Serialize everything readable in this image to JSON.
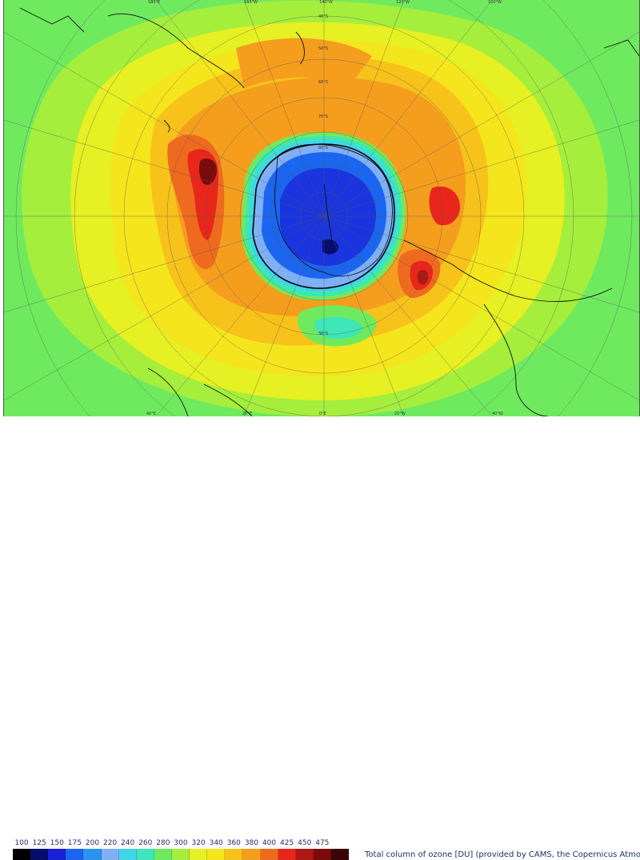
{
  "caption": "Total column of ozone [DU] (provided by CAMS, the Copernicus Atmosphere Monitorin",
  "scale": {
    "labels": [
      "100",
      "125",
      "150",
      "175",
      "200",
      "220",
      "240",
      "260",
      "280",
      "300",
      "320",
      "340",
      "360",
      "380",
      "400",
      "425",
      "450",
      "475"
    ],
    "colors": [
      "#000000",
      "#050f6b",
      "#1b1fd9",
      "#1a66f0",
      "#2a93ef",
      "#7fb0f5",
      "#3fd6e8",
      "#3ee6b8",
      "#6fea5f",
      "#a5ee3c",
      "#e6f022",
      "#f5e51c",
      "#f7c21a",
      "#f59e1e",
      "#ee6a1f",
      "#e8261c",
      "#ad1714",
      "#7b0b0b",
      "#3a0505"
    ]
  },
  "map": {
    "projection": "South polar stereographic",
    "ozone_hole_contour_du": 220,
    "latitude_labels": [
      "30°S",
      "40°S",
      "50°S",
      "60°S",
      "70°S",
      "80°S"
    ],
    "longitude_labels": [
      "180°E",
      "120°E",
      "100°E",
      "80°E",
      "60°E",
      "40°E",
      "20°E",
      "0°E",
      "20°W",
      "40°W",
      "60°W",
      "80°W",
      "100°W",
      "120°W",
      "160°W"
    ],
    "edge_labels": [
      "80°E",
      "60°E",
      "40°E",
      "20°E",
      "0°E",
      "20°W",
      "40°W",
      "60°W",
      "80°W",
      "100°W",
      "120°W",
      "140°W",
      "160°W",
      "180°E"
    ],
    "regions": [
      {
        "name": "ozone-hole",
        "value_du_range": [
          125,
          220
        ]
      },
      {
        "name": "ozone-hole-core-min",
        "value_du": 150
      },
      {
        "name": "collar-max-indian-ocean",
        "value_du": 425
      },
      {
        "name": "collar-max-south-america",
        "value_du": 425
      },
      {
        "name": "collar-max-south-atlantic",
        "value_du": 400
      }
    ]
  }
}
